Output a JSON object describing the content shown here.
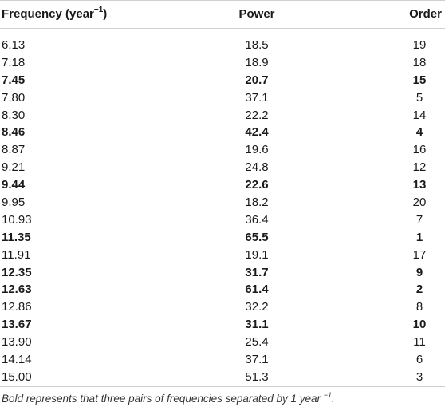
{
  "headers": {
    "frequency": "Frequency (year",
    "frequency_sup": "−1",
    "frequency_close": ")",
    "power": "Power",
    "order": "Order"
  },
  "rows": [
    {
      "frequency": "6.13",
      "power": "18.5",
      "order": "19",
      "bold": false
    },
    {
      "frequency": "7.18",
      "power": "18.9",
      "order": "18",
      "bold": false
    },
    {
      "frequency": "7.45",
      "power": "20.7",
      "order": "15",
      "bold": true
    },
    {
      "frequency": "7.80",
      "power": "37.1",
      "order": "5",
      "bold": false
    },
    {
      "frequency": "8.30",
      "power": "22.2",
      "order": "14",
      "bold": false
    },
    {
      "frequency": "8.46",
      "power": "42.4",
      "order": "4",
      "bold": true
    },
    {
      "frequency": "8.87",
      "power": "19.6",
      "order": "16",
      "bold": false
    },
    {
      "frequency": "9.21",
      "power": "24.8",
      "order": "12",
      "bold": false
    },
    {
      "frequency": "9.44",
      "power": "22.6",
      "order": "13",
      "bold": true
    },
    {
      "frequency": "9.95",
      "power": "18.2",
      "order": "20",
      "bold": false
    },
    {
      "frequency": "10.93",
      "power": "36.4",
      "order": "7",
      "bold": false
    },
    {
      "frequency": "11.35",
      "power": "65.5",
      "order": "1",
      "bold": true
    },
    {
      "frequency": "11.91",
      "power": "19.1",
      "order": "17",
      "bold": false
    },
    {
      "frequency": "12.35",
      "power": "31.7",
      "order": "9",
      "bold": true
    },
    {
      "frequency": "12.63",
      "power": "61.4",
      "order": "2",
      "bold": true
    },
    {
      "frequency": "12.86",
      "power": "32.2",
      "order": "8",
      "bold": false
    },
    {
      "frequency": "13.67",
      "power": "31.1",
      "order": "10",
      "bold": true
    },
    {
      "frequency": "13.90",
      "power": "25.4",
      "order": "11",
      "bold": false
    },
    {
      "frequency": "14.14",
      "power": "37.1",
      "order": "6",
      "bold": false
    },
    {
      "frequency": "15.00",
      "power": "51.3",
      "order": "3",
      "bold": false
    }
  ],
  "footnote": {
    "text": "Bold represents that three pairs of frequencies separated by 1 year",
    "sup": "−1",
    "end": "."
  }
}
